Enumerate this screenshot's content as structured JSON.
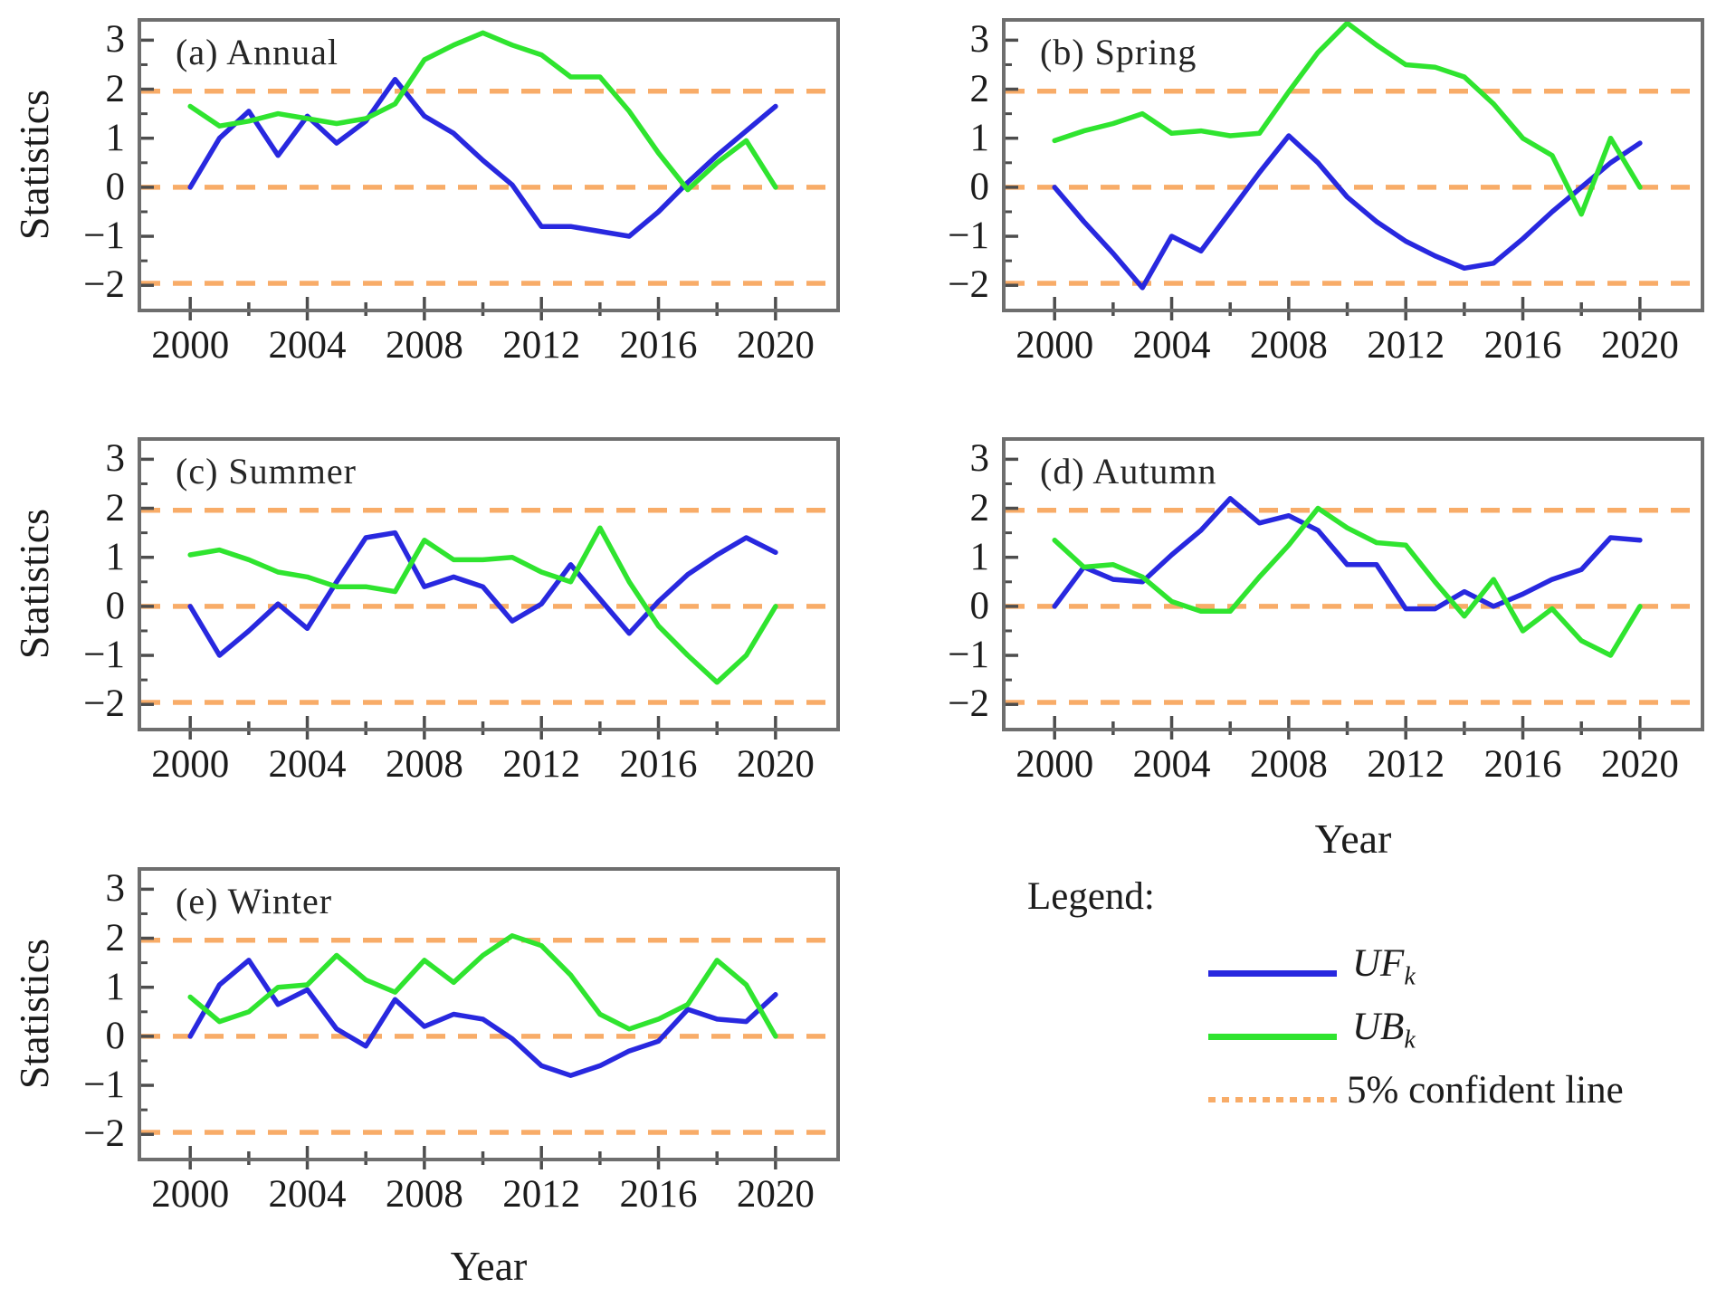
{
  "figure": {
    "background": "#ffffff",
    "text_color": "#1c1c1c",
    "axis_border_color": "#6e6e6e",
    "tick_color": "#4d4d4d",
    "ylabel": "Statistics",
    "xlabel": "Year",
    "legend": {
      "title": "Legend:",
      "position": "bottom-right",
      "items": [
        {
          "name": "UF",
          "sub": "k",
          "color": "#2828df",
          "style": "solid"
        },
        {
          "name": "UB",
          "sub": "k",
          "color": "#2fe42f",
          "style": "solid"
        },
        {
          "name": "5% confident line",
          "sub": "",
          "color": "#f8ac68",
          "style": "dotted"
        }
      ]
    }
  },
  "chart_data": {
    "type": "line",
    "xlabel": "Year",
    "ylabel": "Statistics",
    "x": [
      2000,
      2001,
      2002,
      2003,
      2004,
      2005,
      2006,
      2007,
      2008,
      2009,
      2010,
      2011,
      2012,
      2013,
      2014,
      2015,
      2016,
      2017,
      2018,
      2019,
      2020
    ],
    "xlim": [
      1998.2,
      2022.2
    ],
    "ylim": [
      -2.55,
      3.45
    ],
    "xticks": [
      2000,
      2002,
      2004,
      2006,
      2008,
      2010,
      2012,
      2014,
      2016,
      2018,
      2020
    ],
    "xtick_labels": [
      {
        "value": 2000,
        "label": "2000"
      },
      {
        "value": 2004,
        "label": "2004"
      },
      {
        "value": 2008,
        "label": "2008"
      },
      {
        "value": 2012,
        "label": "2012"
      },
      {
        "value": 2016,
        "label": "2016"
      },
      {
        "value": 2020,
        "label": "2020"
      }
    ],
    "ytick_labels": [
      {
        "value": 3,
        "label": "3"
      },
      {
        "value": 2,
        "label": "2"
      },
      {
        "value": 1,
        "label": "1"
      },
      {
        "value": 0,
        "label": "0"
      },
      {
        "value": -1,
        "label": "−1"
      },
      {
        "value": -2,
        "label": "−2"
      }
    ],
    "ytick_minor": [
      2.5,
      1.5,
      0.5,
      -0.5,
      -1.5
    ],
    "confidence_lines": [
      1.96,
      0,
      -1.96
    ],
    "grid": false,
    "series_colors": {
      "UF": "#2828df",
      "UB": "#2fe42f",
      "confidence": "#f8ac68"
    },
    "panels": [
      {
        "id": "annual",
        "title": "(a) Annual",
        "UF": [
          0.0,
          1.0,
          1.55,
          0.65,
          1.45,
          0.9,
          1.35,
          2.2,
          1.45,
          1.1,
          0.55,
          0.05,
          -0.8,
          -0.8,
          -0.9,
          -1.0,
          -0.5,
          0.1,
          0.65,
          1.15,
          1.65
        ],
        "UB": [
          1.65,
          1.25,
          1.35,
          1.5,
          1.4,
          1.3,
          1.4,
          1.7,
          2.6,
          2.9,
          3.15,
          2.9,
          2.7,
          2.25,
          2.25,
          1.55,
          0.7,
          -0.05,
          0.5,
          0.95,
          0.0
        ]
      },
      {
        "id": "spring",
        "title": "(b) Spring",
        "UF": [
          0.0,
          -0.7,
          -1.35,
          -2.05,
          -1.0,
          -1.3,
          -0.5,
          0.3,
          1.05,
          0.5,
          -0.2,
          -0.7,
          -1.1,
          -1.4,
          -1.65,
          -1.55,
          -1.05,
          -0.5,
          0.0,
          0.5,
          0.9
        ],
        "UB": [
          0.95,
          1.15,
          1.3,
          1.5,
          1.1,
          1.15,
          1.05,
          1.1,
          1.95,
          2.75,
          3.35,
          2.9,
          2.5,
          2.45,
          2.25,
          1.7,
          1.0,
          0.65,
          -0.55,
          1.0,
          0.0
        ]
      },
      {
        "id": "summer",
        "title": "(c) Summer",
        "UF": [
          0.0,
          -1.0,
          -0.5,
          0.05,
          -0.45,
          0.5,
          1.4,
          1.5,
          0.4,
          0.6,
          0.4,
          -0.3,
          0.05,
          0.85,
          0.15,
          -0.55,
          0.1,
          0.65,
          1.05,
          1.4,
          1.1
        ],
        "UB": [
          1.05,
          1.15,
          0.95,
          0.7,
          0.6,
          0.4,
          0.4,
          0.3,
          1.35,
          0.95,
          0.95,
          1.0,
          0.7,
          0.5,
          1.6,
          0.5,
          -0.4,
          -1.0,
          -1.55,
          -1.0,
          0.0
        ]
      },
      {
        "id": "autumn",
        "title": "(d) Autumn",
        "UF": [
          0.0,
          0.8,
          0.55,
          0.5,
          1.05,
          1.55,
          2.2,
          1.7,
          1.85,
          1.55,
          0.85,
          0.85,
          -0.05,
          -0.05,
          0.3,
          0.0,
          0.25,
          0.55,
          0.75,
          1.4,
          1.35
        ],
        "UB": [
          1.35,
          0.8,
          0.85,
          0.6,
          0.1,
          -0.1,
          -0.1,
          0.6,
          1.25,
          2.0,
          1.6,
          1.3,
          1.25,
          0.5,
          -0.2,
          0.55,
          -0.5,
          -0.05,
          -0.7,
          -1.0,
          0.0
        ]
      },
      {
        "id": "winter",
        "title": "(e) Winter",
        "UF": [
          0.0,
          1.05,
          1.55,
          0.65,
          0.95,
          0.15,
          -0.2,
          0.75,
          0.2,
          0.45,
          0.35,
          -0.05,
          -0.6,
          -0.8,
          -0.6,
          -0.3,
          -0.1,
          0.55,
          0.35,
          0.3,
          0.85
        ],
        "UB": [
          0.8,
          0.3,
          0.5,
          1.0,
          1.05,
          1.65,
          1.15,
          0.9,
          1.55,
          1.1,
          1.65,
          2.05,
          1.85,
          1.25,
          0.45,
          0.15,
          0.35,
          0.65,
          1.55,
          1.05,
          0.0
        ]
      }
    ]
  }
}
